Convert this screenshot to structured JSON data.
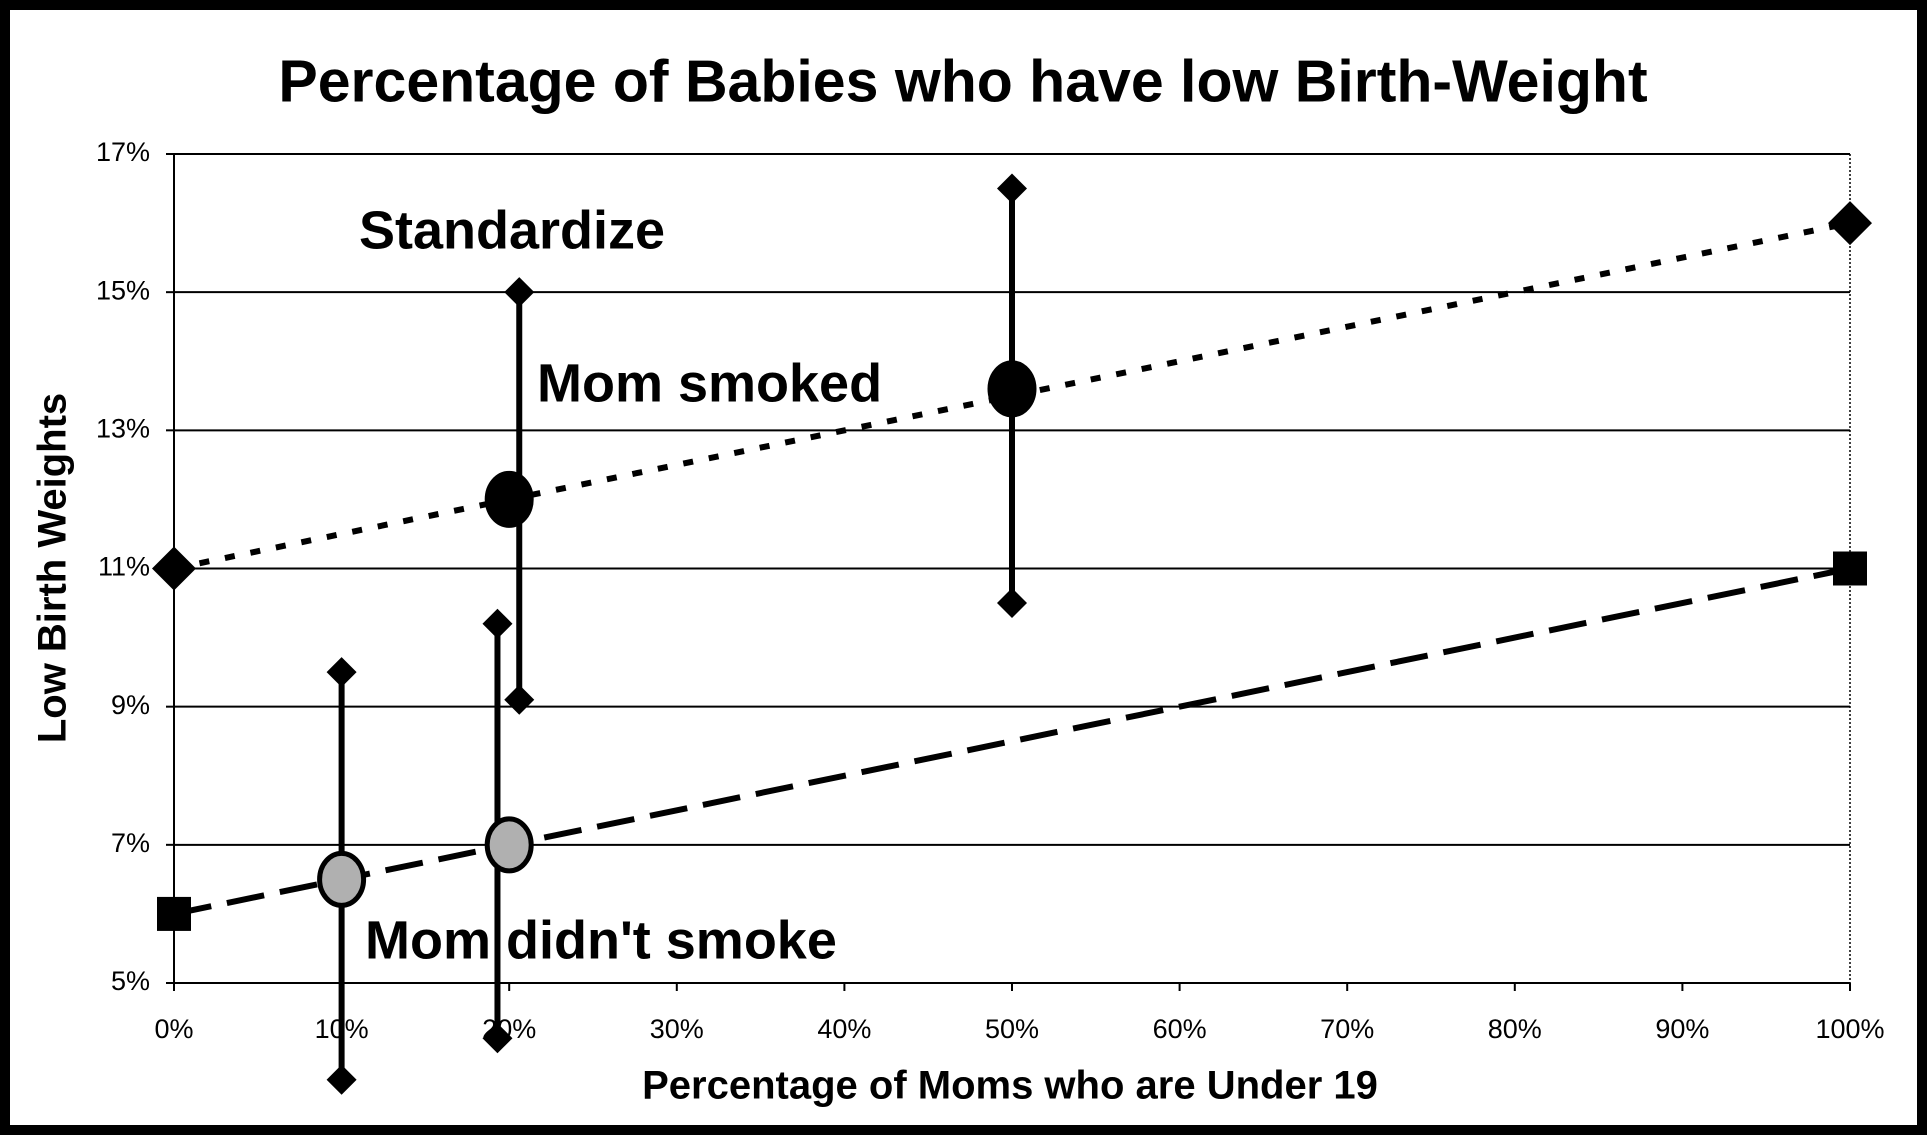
{
  "chart_data": {
    "type": "scatter",
    "title": "Percentage of Babies who have low Birth-Weight",
    "xlabel": "Percentage of Moms who are Under 19",
    "ylabel": "Low Birth Weights",
    "xlim": [
      0,
      100
    ],
    "ylim": [
      5,
      17
    ],
    "xticks": [
      {
        "value": 0,
        "label": "0%"
      },
      {
        "value": 10,
        "label": "10%"
      },
      {
        "value": 20,
        "label": "20%"
      },
      {
        "value": 30,
        "label": "30%"
      },
      {
        "value": 40,
        "label": "40%"
      },
      {
        "value": 50,
        "label": "50%"
      },
      {
        "value": 60,
        "label": "60%"
      },
      {
        "value": 70,
        "label": "70%"
      },
      {
        "value": 80,
        "label": "80%"
      },
      {
        "value": 90,
        "label": "90%"
      },
      {
        "value": 100,
        "label": "100%"
      }
    ],
    "yticks": [
      {
        "value": 5,
        "label": "5%"
      },
      {
        "value": 7,
        "label": "7%"
      },
      {
        "value": 9,
        "label": "9%"
      },
      {
        "value": 11,
        "label": "11%"
      },
      {
        "value": 13,
        "label": "13%"
      },
      {
        "value": 15,
        "label": "15%"
      },
      {
        "value": 17,
        "label": "17%"
      }
    ],
    "grid": true,
    "series": [
      {
        "name": "Mom smoked",
        "color": "#000000",
        "line": "dotted",
        "end_marker": "diamond",
        "x": [
          0,
          100
        ],
        "values": [
          11,
          16
        ],
        "point_x": [
          20,
          50
        ],
        "point_values": [
          12,
          13.6
        ],
        "point_color": "#000000"
      },
      {
        "name": "Mom didn't smoke",
        "color": "#000000",
        "line": "dashed",
        "end_marker": "square",
        "x": [
          0,
          100
        ],
        "values": [
          6,
          11
        ],
        "point_x": [
          10,
          20
        ],
        "point_values": [
          6.5,
          7
        ],
        "point_color": "#b0b0b0"
      }
    ],
    "error_bars": [
      {
        "x": 10,
        "low": 3.6,
        "high": 9.5
      },
      {
        "x": 19.3,
        "low": 4.2,
        "high": 10.2
      },
      {
        "x": 20.6,
        "low": 9.1,
        "high": 15
      },
      {
        "x": 50,
        "low": 10.5,
        "high": 16.5
      }
    ],
    "annotation": "Standardize"
  }
}
